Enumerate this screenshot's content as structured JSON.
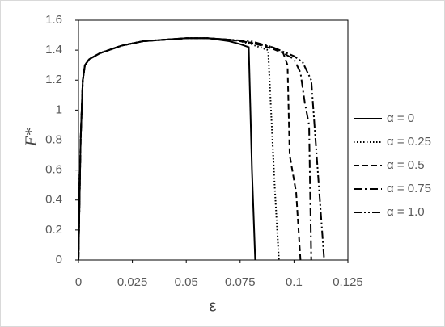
{
  "chart_data": {
    "type": "line",
    "xlabel": "ε",
    "ylabel": "F*",
    "xlim": [
      0,
      0.125
    ],
    "xticks": [
      0,
      0.025,
      0.05,
      0.075,
      0.1,
      0.125
    ],
    "ylim": [
      0,
      1.6
    ],
    "yticks": [
      0,
      0.2,
      0.4,
      0.6,
      0.8,
      1,
      1.2,
      1.4,
      1.6
    ],
    "legend": "right",
    "series": [
      {
        "name": "α = 0",
        "color": "#000000",
        "dash": "solid",
        "x": [
          0,
          0.001,
          0.002,
          0.003,
          0.005,
          0.01,
          0.02,
          0.03,
          0.04,
          0.05,
          0.06,
          0.07,
          0.075,
          0.079,
          0.0805,
          0.082
        ],
        "values": [
          0,
          0.8,
          1.2,
          1.3,
          1.34,
          1.38,
          1.43,
          1.46,
          1.47,
          1.48,
          1.48,
          1.46,
          1.44,
          1.42,
          0.6,
          0
        ]
      },
      {
        "name": "α = 0.25",
        "color": "#000000",
        "dash": "dotted",
        "x": [
          0,
          0.001,
          0.002,
          0.003,
          0.005,
          0.01,
          0.02,
          0.03,
          0.04,
          0.05,
          0.06,
          0.07,
          0.075,
          0.08,
          0.088,
          0.089,
          0.091,
          0.093
        ],
        "values": [
          0,
          0.8,
          1.2,
          1.3,
          1.34,
          1.38,
          1.43,
          1.46,
          1.47,
          1.48,
          1.48,
          1.47,
          1.46,
          1.44,
          1.4,
          1.1,
          0.5,
          0
        ]
      },
      {
        "name": "α = 0.5",
        "color": "#000000",
        "dash": "dashed",
        "x": [
          0,
          0.001,
          0.002,
          0.003,
          0.005,
          0.01,
          0.02,
          0.03,
          0.04,
          0.05,
          0.06,
          0.07,
          0.08,
          0.09,
          0.095,
          0.097,
          0.098,
          0.101,
          0.103
        ],
        "values": [
          0,
          0.8,
          1.2,
          1.3,
          1.34,
          1.38,
          1.43,
          1.46,
          1.47,
          1.48,
          1.48,
          1.47,
          1.45,
          1.41,
          1.38,
          1.3,
          0.7,
          0.45,
          0
        ]
      },
      {
        "name": "α = 0.75",
        "color": "#000000",
        "dash": "dashdot",
        "x": [
          0,
          0.001,
          0.002,
          0.003,
          0.005,
          0.01,
          0.02,
          0.03,
          0.04,
          0.05,
          0.06,
          0.07,
          0.08,
          0.09,
          0.1,
          0.103,
          0.105,
          0.107,
          0.108
        ],
        "values": [
          0,
          0.8,
          1.2,
          1.3,
          1.34,
          1.38,
          1.43,
          1.46,
          1.47,
          1.48,
          1.48,
          1.47,
          1.45,
          1.42,
          1.34,
          1.25,
          1.05,
          0.9,
          0
        ]
      },
      {
        "name": "α = 1.0",
        "color": "#000000",
        "dash": "dashdotdot",
        "x": [
          0,
          0.001,
          0.002,
          0.003,
          0.005,
          0.01,
          0.02,
          0.03,
          0.04,
          0.05,
          0.06,
          0.07,
          0.08,
          0.09,
          0.1,
          0.104,
          0.108,
          0.111,
          0.114
        ],
        "values": [
          0,
          0.8,
          1.2,
          1.3,
          1.34,
          1.38,
          1.43,
          1.46,
          1.47,
          1.48,
          1.48,
          1.47,
          1.46,
          1.42,
          1.36,
          1.32,
          1.2,
          0.6,
          0
        ]
      }
    ]
  }
}
